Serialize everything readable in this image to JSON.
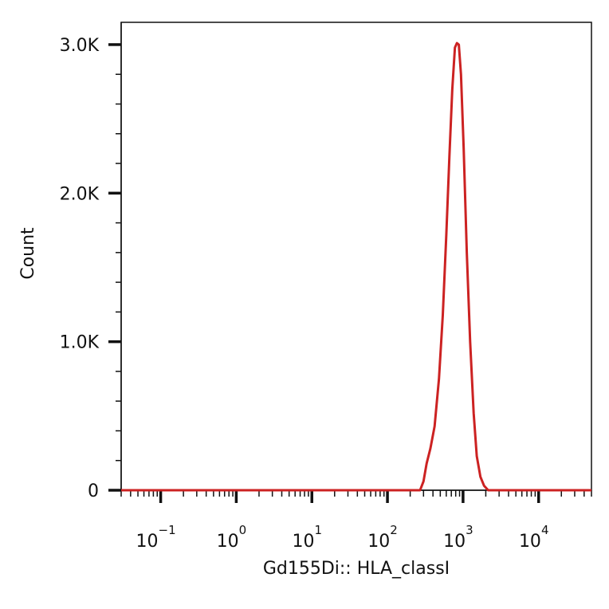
{
  "chart_data": {
    "type": "line",
    "title": "",
    "xlabel": "Gd155Di:: HLA_classI",
    "ylabel": "Count",
    "xscale": "log",
    "xlim": [
      0.03,
      50000
    ],
    "ylim": [
      0,
      3150
    ],
    "grid": false,
    "legend": "none",
    "line_color": "#cc2222",
    "y_ticks": [
      {
        "value": 0,
        "label": "0"
      },
      {
        "value": 1000,
        "label": "1.0K"
      },
      {
        "value": 2000,
        "label": "2.0K"
      },
      {
        "value": 3000,
        "label": "3.0K"
      }
    ],
    "x_ticks": [
      {
        "value": 0.1,
        "base": "10",
        "exp": "−1"
      },
      {
        "value": 1,
        "base": "10",
        "exp": "0"
      },
      {
        "value": 10,
        "base": "10",
        "exp": "1"
      },
      {
        "value": 100,
        "base": "10",
        "exp": "2"
      },
      {
        "value": 1000,
        "base": "10",
        "exp": "3"
      },
      {
        "value": 10000,
        "base": "10",
        "exp": "4"
      }
    ],
    "series": [
      {
        "points": [
          [
            0.03,
            0
          ],
          [
            270,
            0
          ],
          [
            300,
            60
          ],
          [
            330,
            180
          ],
          [
            370,
            280
          ],
          [
            420,
            430
          ],
          [
            480,
            750
          ],
          [
            540,
            1180
          ],
          [
            600,
            1720
          ],
          [
            660,
            2250
          ],
          [
            720,
            2700
          ],
          [
            780,
            2980
          ],
          [
            830,
            3010
          ],
          [
            880,
            3000
          ],
          [
            940,
            2800
          ],
          [
            1020,
            2300
          ],
          [
            1120,
            1600
          ],
          [
            1240,
            1000
          ],
          [
            1380,
            520
          ],
          [
            1520,
            230
          ],
          [
            1700,
            90
          ],
          [
            1900,
            30
          ],
          [
            2150,
            0
          ],
          [
            50000,
            0
          ]
        ]
      }
    ]
  }
}
